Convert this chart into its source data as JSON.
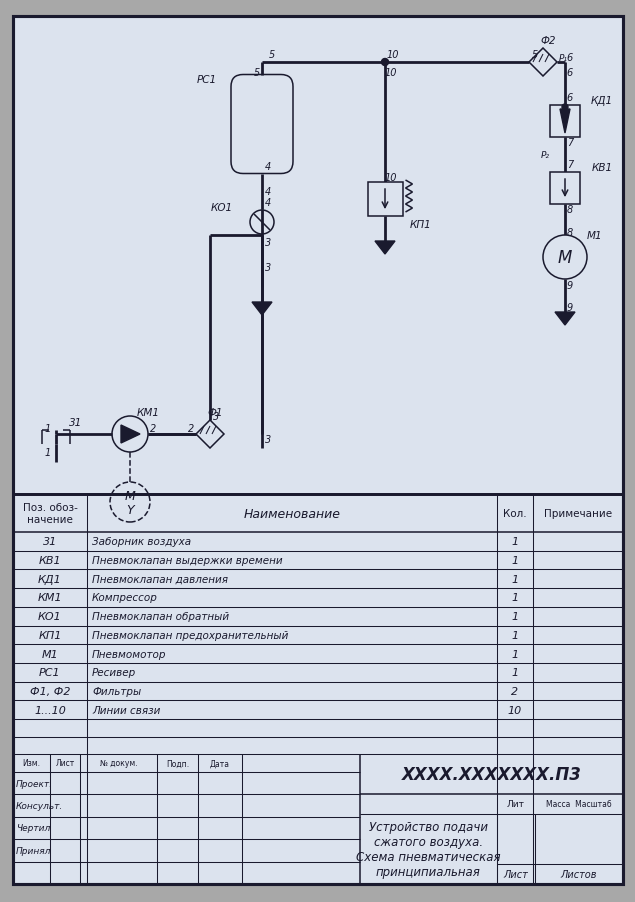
{
  "bg_color": "#a8a8a8",
  "sheet_color": "#dce3ee",
  "line_color": "#1a1a2e",
  "table_rows": [
    [
      "31",
      "Заборник воздуха",
      "1"
    ],
    [
      "КВ1",
      "Пневмоклапан выдержки времени",
      "1"
    ],
    [
      "КД1",
      "Пневмоклапан давления",
      "1"
    ],
    [
      "КМ1",
      "Компрессор",
      "1"
    ],
    [
      "КО1",
      "Пневмоклапан обратный",
      "1"
    ],
    [
      "КП1",
      "Пневмоклапан предохранительный",
      "1"
    ],
    [
      "М1",
      "Пневмомотор",
      "1"
    ],
    [
      "РС1",
      "Ресивер",
      "1"
    ],
    [
      "Ф1, Ф2",
      "Фильтры",
      "2"
    ],
    [
      "1...10",
      "Линии связи",
      "10"
    ]
  ],
  "doc_number": "XXXX.XXXXXXX.П3",
  "doc_title": "Устройство подачи\nсжатого воздуха.\nСхема пневматическая\nпринципиальная",
  "stamp_labels": [
    "Изм.",
    "Лист",
    "№ докум.",
    "Подп.",
    "Дата"
  ],
  "left_labels": [
    "Проект.",
    "Консульт.",
    "Чертил",
    "Принял"
  ]
}
